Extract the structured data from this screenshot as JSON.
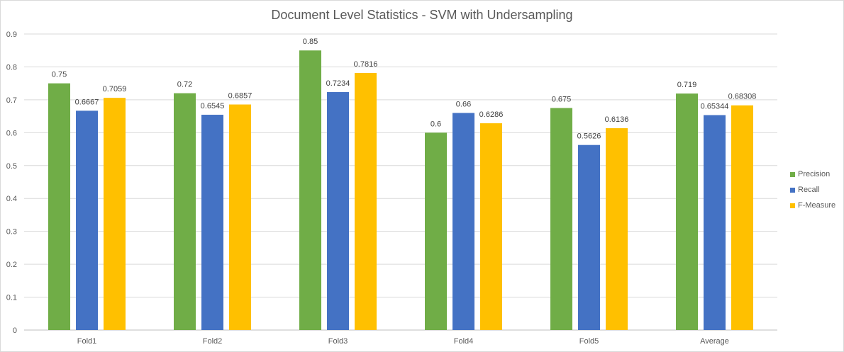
{
  "chart_data": {
    "type": "bar",
    "title": "Document Level Statistics - SVM with Undersampling",
    "xlabel": "",
    "ylabel": "",
    "categories": [
      "Fold1",
      "Fold2",
      "Fold3",
      "Fold4",
      "Fold5",
      "Average"
    ],
    "series": [
      {
        "name": "Precision",
        "color": "#70ad47",
        "values": [
          0.75,
          0.72,
          0.85,
          0.6,
          0.675,
          0.719
        ],
        "labels": [
          "0.75",
          "0.72",
          "0.85",
          "0.6",
          "0.675",
          "0.719"
        ]
      },
      {
        "name": "Recall",
        "color": "#4472c4",
        "values": [
          0.6667,
          0.6545,
          0.7234,
          0.66,
          0.5626,
          0.65344
        ],
        "labels": [
          "0.6667",
          "0.6545",
          "0.7234",
          "0.66",
          "0.5626",
          "0.65344"
        ]
      },
      {
        "name": "F-Measure",
        "color": "#ffc000",
        "values": [
          0.7059,
          0.6857,
          0.7816,
          0.6286,
          0.6136,
          0.68308
        ],
        "labels": [
          "0.7059",
          "0.6857",
          "0.7816",
          "0.6286",
          "0.6136",
          "0.68308"
        ]
      }
    ],
    "ylim": [
      0,
      0.9
    ],
    "yticks": [
      "0",
      "0.1",
      "0.2",
      "0.3",
      "0.4",
      "0.5",
      "0.6",
      "0.7",
      "0.8",
      "0.9"
    ],
    "grid": true,
    "legend_position": "right"
  }
}
